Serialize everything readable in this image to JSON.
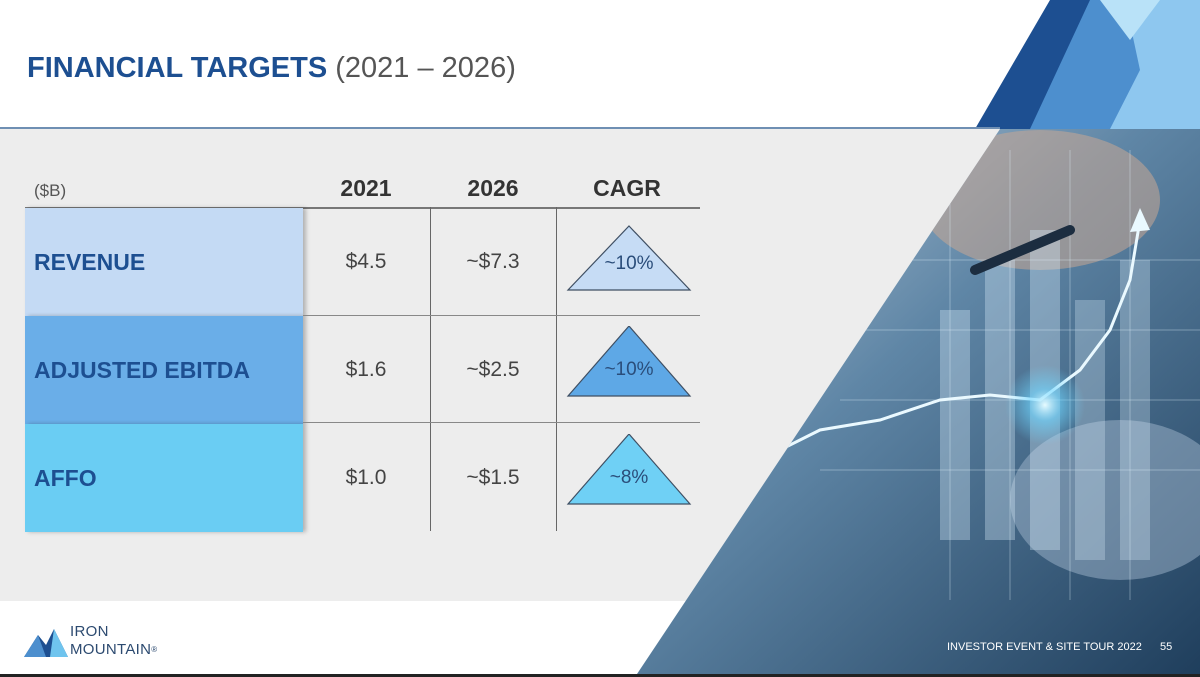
{
  "slide": {
    "title_bold": "FINANCIAL TARGETS",
    "title_light": "(2021 – 2026)"
  },
  "table": {
    "units": "($B)",
    "columns": [
      "2021",
      "2026",
      "CAGR"
    ],
    "rows": [
      {
        "label": "REVENUE",
        "v2021": "$4.5",
        "v2026": "~$7.3",
        "cagr": "~10%",
        "color": "#c4daf4",
        "tri_color": "#c6dcf5"
      },
      {
        "label": "ADJUSTED EBITDA",
        "v2021": "$1.6",
        "v2026": "~$2.5",
        "cagr": "~10%",
        "color": "#6aaee8",
        "tri_color": "#5ea8e6"
      },
      {
        "label": "AFFO",
        "v2021": "$1.0",
        "v2026": "~$1.5",
        "cagr": "~8%",
        "color": "#6acdf3",
        "tri_color": "#6fd0f5"
      }
    ]
  },
  "logo": {
    "line1": "IRON",
    "line2": "MOUNTAIN",
    "trademark": "®"
  },
  "footer": {
    "event": "INVESTOR EVENT & SITE TOUR 2022",
    "page": "55"
  },
  "colors": {
    "title_blue": "#1d4f91",
    "panel_gray": "#ededed"
  }
}
